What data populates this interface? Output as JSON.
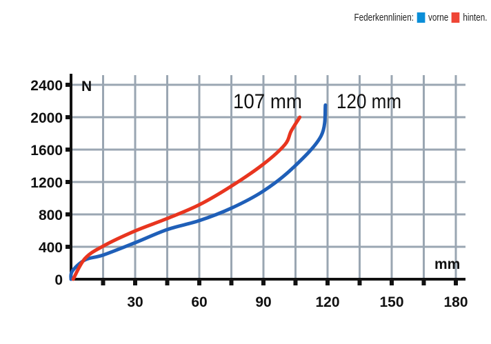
{
  "legend": {
    "title": "Federkennlinien:",
    "items": [
      {
        "label": "vorne",
        "color": "#0a8ed8"
      },
      {
        "label": "hinten.",
        "color": "#ef4636"
      }
    ]
  },
  "chart_data": {
    "type": "line",
    "xlabel": "mm",
    "ylabel": "N",
    "xlim": [
      0,
      180
    ],
    "ylim": [
      0,
      2400
    ],
    "x_ticks": [
      30,
      60,
      90,
      120,
      150,
      180
    ],
    "y_ticks": [
      0,
      400,
      800,
      1200,
      1600,
      2000,
      2400
    ],
    "grid": true,
    "annotations": [
      "107 mm",
      "120 mm"
    ],
    "series": [
      {
        "name": "vorne",
        "color": "#1f5fb8",
        "x": [
          0,
          0.6,
          6.5,
          15,
          30,
          45,
          60,
          75,
          90,
          104,
          117,
          119
        ],
        "y": [
          0,
          100,
          238,
          298,
          451,
          613,
          723,
          877,
          1089,
          1379,
          1770,
          2150
        ]
      },
      {
        "name": "hinten.",
        "color": "#e8351f",
        "x": [
          1,
          6.5,
          15,
          30,
          45,
          60,
          75,
          90,
          100,
          103,
          107
        ],
        "y": [
          0,
          255,
          408,
          596,
          749,
          919,
          1149,
          1421,
          1660,
          1830,
          2000
        ]
      }
    ]
  }
}
